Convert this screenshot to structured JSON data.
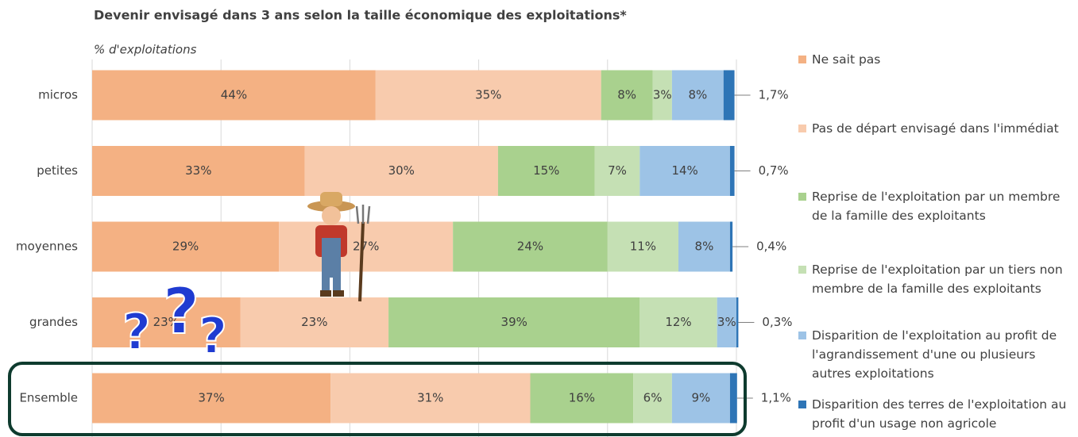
{
  "chart_data": {
    "type": "stacked_barh",
    "title": "Devenir envisagé dans 3 ans selon la taille économique des exploitations*",
    "axis_label": "% d'exploitations",
    "categories": [
      "micros",
      "petites",
      "moyennes",
      "grandes",
      "Ensemble"
    ],
    "xlim": [
      0,
      100
    ],
    "xticks": [
      0,
      20,
      40,
      60,
      80,
      100
    ],
    "grid": true,
    "legend": "right",
    "series": [
      {
        "name": "Ne sait pas",
        "color": "#f4b183",
        "values": [
          44,
          33,
          29,
          23,
          37
        ],
        "value_labels": [
          "44%",
          "33%",
          "29%",
          "23%",
          "37%"
        ]
      },
      {
        "name": "Pas de départ envisagé dans l'immédiat",
        "color": "#f8cbad",
        "values": [
          35,
          30,
          27,
          23,
          31
        ],
        "value_labels": [
          "35%",
          "30%",
          "27%",
          "23%",
          "31%"
        ]
      },
      {
        "name": "Reprise de l'exploitation par un membre de la famille des exploitants",
        "color": "#a9d18e",
        "values": [
          8,
          15,
          24,
          39,
          16
        ],
        "value_labels": [
          "8%",
          "15%",
          "24%",
          "39%",
          "16%"
        ]
      },
      {
        "name": "Reprise de l'exploitation par un tiers non membre de la famille des exploitants",
        "color": "#c5e0b4",
        "values": [
          3,
          7,
          11,
          12,
          6
        ],
        "value_labels": [
          "3%",
          "7%",
          "11%",
          "12%",
          "6%"
        ]
      },
      {
        "name": "Disparition de l'exploitation au profit de l'agrandissement d'une ou plusieurs autres exploitations",
        "color": "#9dc3e6",
        "values": [
          8,
          14,
          8,
          3,
          9
        ],
        "value_labels": [
          "8%",
          "14%",
          "8%",
          "3%",
          "9%"
        ]
      },
      {
        "name": "Disparition des terres de l'exploitation au profit d'un usage non agricole",
        "color": "#2e75b6",
        "values": [
          1.7,
          0.7,
          0.4,
          0.3,
          1.1
        ],
        "value_labels": [
          "1,7%",
          "0,7%",
          "0,4%",
          "0,3%",
          "1,1%"
        ]
      }
    ],
    "annotations": [
      "?",
      "?",
      "?"
    ]
  }
}
